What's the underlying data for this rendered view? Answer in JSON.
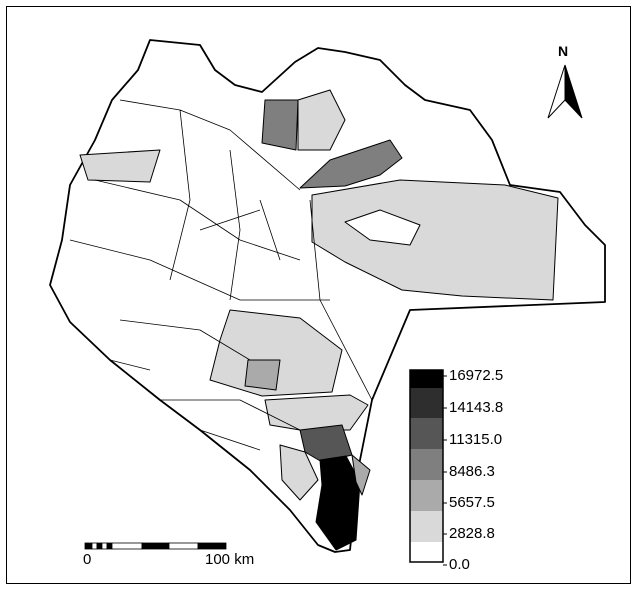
{
  "north_arrow": {
    "label": "N"
  },
  "legend": {
    "labels": [
      "16972.5",
      "14143.8",
      "11315.0",
      "8486.3",
      "5657.5",
      "2828.8",
      "0.0"
    ],
    "colors": [
      "#000000",
      "#2e2e2e",
      "#565656",
      "#7f7f7f",
      "#aaaaaa",
      "#d9d9d9",
      "#ffffff"
    ]
  },
  "scale_bar": {
    "start_label": "0",
    "end_label": "100 km"
  }
}
